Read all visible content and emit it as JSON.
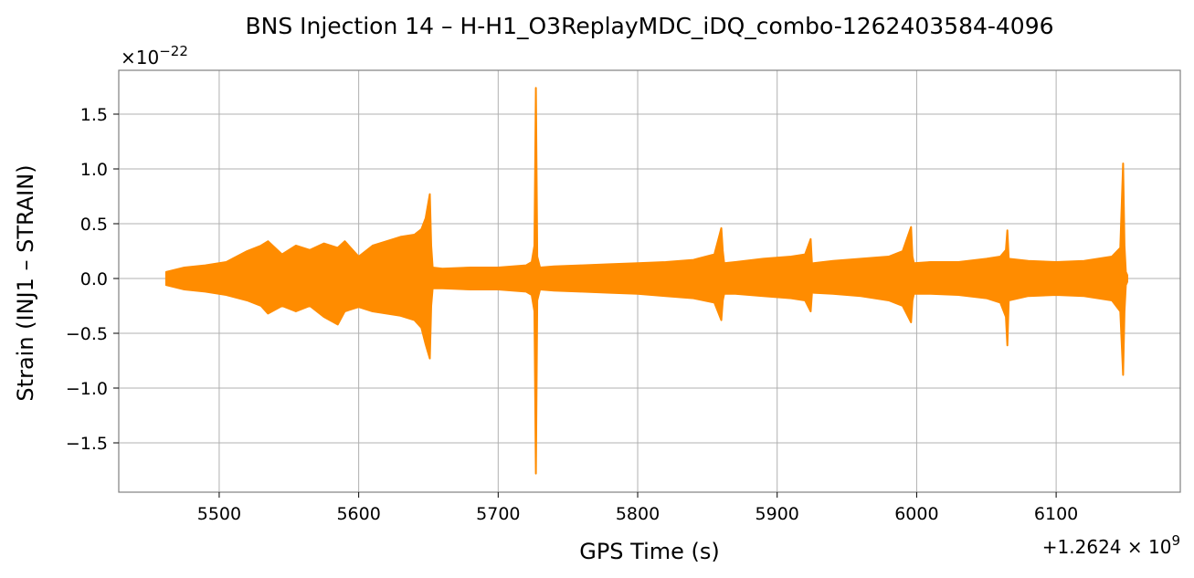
{
  "chart_data": {
    "type": "line",
    "title": "BNS Injection 14 – H-H1_O3ReplayMDC_iDQ_combo-1262403584-4096",
    "xlabel": "GPS Time (s)",
    "ylabel": "Strain (INJ1 – STRAIN)",
    "x_offset_label": "+1.2624 × 10",
    "x_offset_exponent": "9",
    "y_scale_label": "×10",
    "y_scale_exponent": "−22",
    "xlim": [
      5428,
      6189
    ],
    "ylim": [
      -1.95,
      1.9
    ],
    "x_ticks": [
      5500,
      5600,
      5700,
      5800,
      5900,
      6000,
      6100
    ],
    "x_tick_labels": [
      "5500",
      "5600",
      "5700",
      "5800",
      "5900",
      "6000",
      "6100"
    ],
    "y_ticks": [
      1.5,
      1.0,
      0.5,
      0.0,
      -0.5,
      -1.0,
      -1.5
    ],
    "y_tick_labels": [
      "1.5",
      "1.0",
      "0.5",
      "0.0",
      "−0.5",
      "−1.0",
      "−1.5"
    ],
    "grid": true,
    "line_color": "#ff8c00",
    "series": [
      {
        "x": [
          5462,
          5475,
          5490,
          5505,
          5520,
          5530,
          5535,
          5545,
          5555,
          5565,
          5575,
          5585,
          5590,
          5600,
          5610,
          5620,
          5630,
          5640,
          5645,
          5648,
          5651,
          5652,
          5653,
          5660,
          5680,
          5700,
          5720,
          5724,
          5726,
          5727,
          5728,
          5730,
          5740,
          5760,
          5780,
          5800,
          5820,
          5840,
          5855,
          5860,
          5861,
          5862,
          5870,
          5890,
          5910,
          5920,
          5924,
          5925,
          5926,
          5940,
          5960,
          5980,
          5990,
          5996,
          5997,
          5998,
          6010,
          6030,
          6050,
          6060,
          6064,
          6065,
          6066,
          6080,
          6100,
          6120,
          6140,
          6146,
          6148,
          6149,
          6150,
          6151
        ],
        "upper": [
          0.06,
          0.1,
          0.12,
          0.15,
          0.25,
          0.3,
          0.34,
          0.22,
          0.3,
          0.26,
          0.32,
          0.28,
          0.34,
          0.2,
          0.3,
          0.34,
          0.38,
          0.4,
          0.45,
          0.55,
          0.77,
          0.3,
          0.1,
          0.09,
          0.1,
          0.1,
          0.12,
          0.15,
          0.3,
          1.74,
          0.2,
          0.1,
          0.11,
          0.12,
          0.13,
          0.14,
          0.15,
          0.17,
          0.22,
          0.46,
          0.25,
          0.14,
          0.15,
          0.18,
          0.2,
          0.22,
          0.36,
          0.12,
          0.14,
          0.16,
          0.18,
          0.2,
          0.25,
          0.47,
          0.2,
          0.14,
          0.15,
          0.15,
          0.18,
          0.2,
          0.26,
          0.44,
          0.18,
          0.16,
          0.15,
          0.16,
          0.2,
          0.28,
          1.05,
          0.3,
          0.06,
          0.03
        ],
        "lower": [
          -0.06,
          -0.1,
          -0.12,
          -0.15,
          -0.2,
          -0.25,
          -0.32,
          -0.25,
          -0.3,
          -0.25,
          -0.35,
          -0.42,
          -0.3,
          -0.26,
          -0.3,
          -0.32,
          -0.34,
          -0.38,
          -0.45,
          -0.6,
          -0.73,
          -0.25,
          -0.09,
          -0.09,
          -0.1,
          -0.1,
          -0.12,
          -0.15,
          -0.3,
          -1.78,
          -0.2,
          -0.1,
          -0.11,
          -0.12,
          -0.13,
          -0.14,
          -0.16,
          -0.18,
          -0.22,
          -0.38,
          -0.2,
          -0.14,
          -0.14,
          -0.16,
          -0.18,
          -0.2,
          -0.3,
          -0.12,
          -0.13,
          -0.14,
          -0.16,
          -0.2,
          -0.25,
          -0.4,
          -0.2,
          -0.14,
          -0.14,
          -0.15,
          -0.18,
          -0.22,
          -0.35,
          -0.61,
          -0.2,
          -0.16,
          -0.15,
          -0.16,
          -0.2,
          -0.3,
          -0.88,
          -0.3,
          -0.06,
          -0.03
        ]
      }
    ]
  }
}
